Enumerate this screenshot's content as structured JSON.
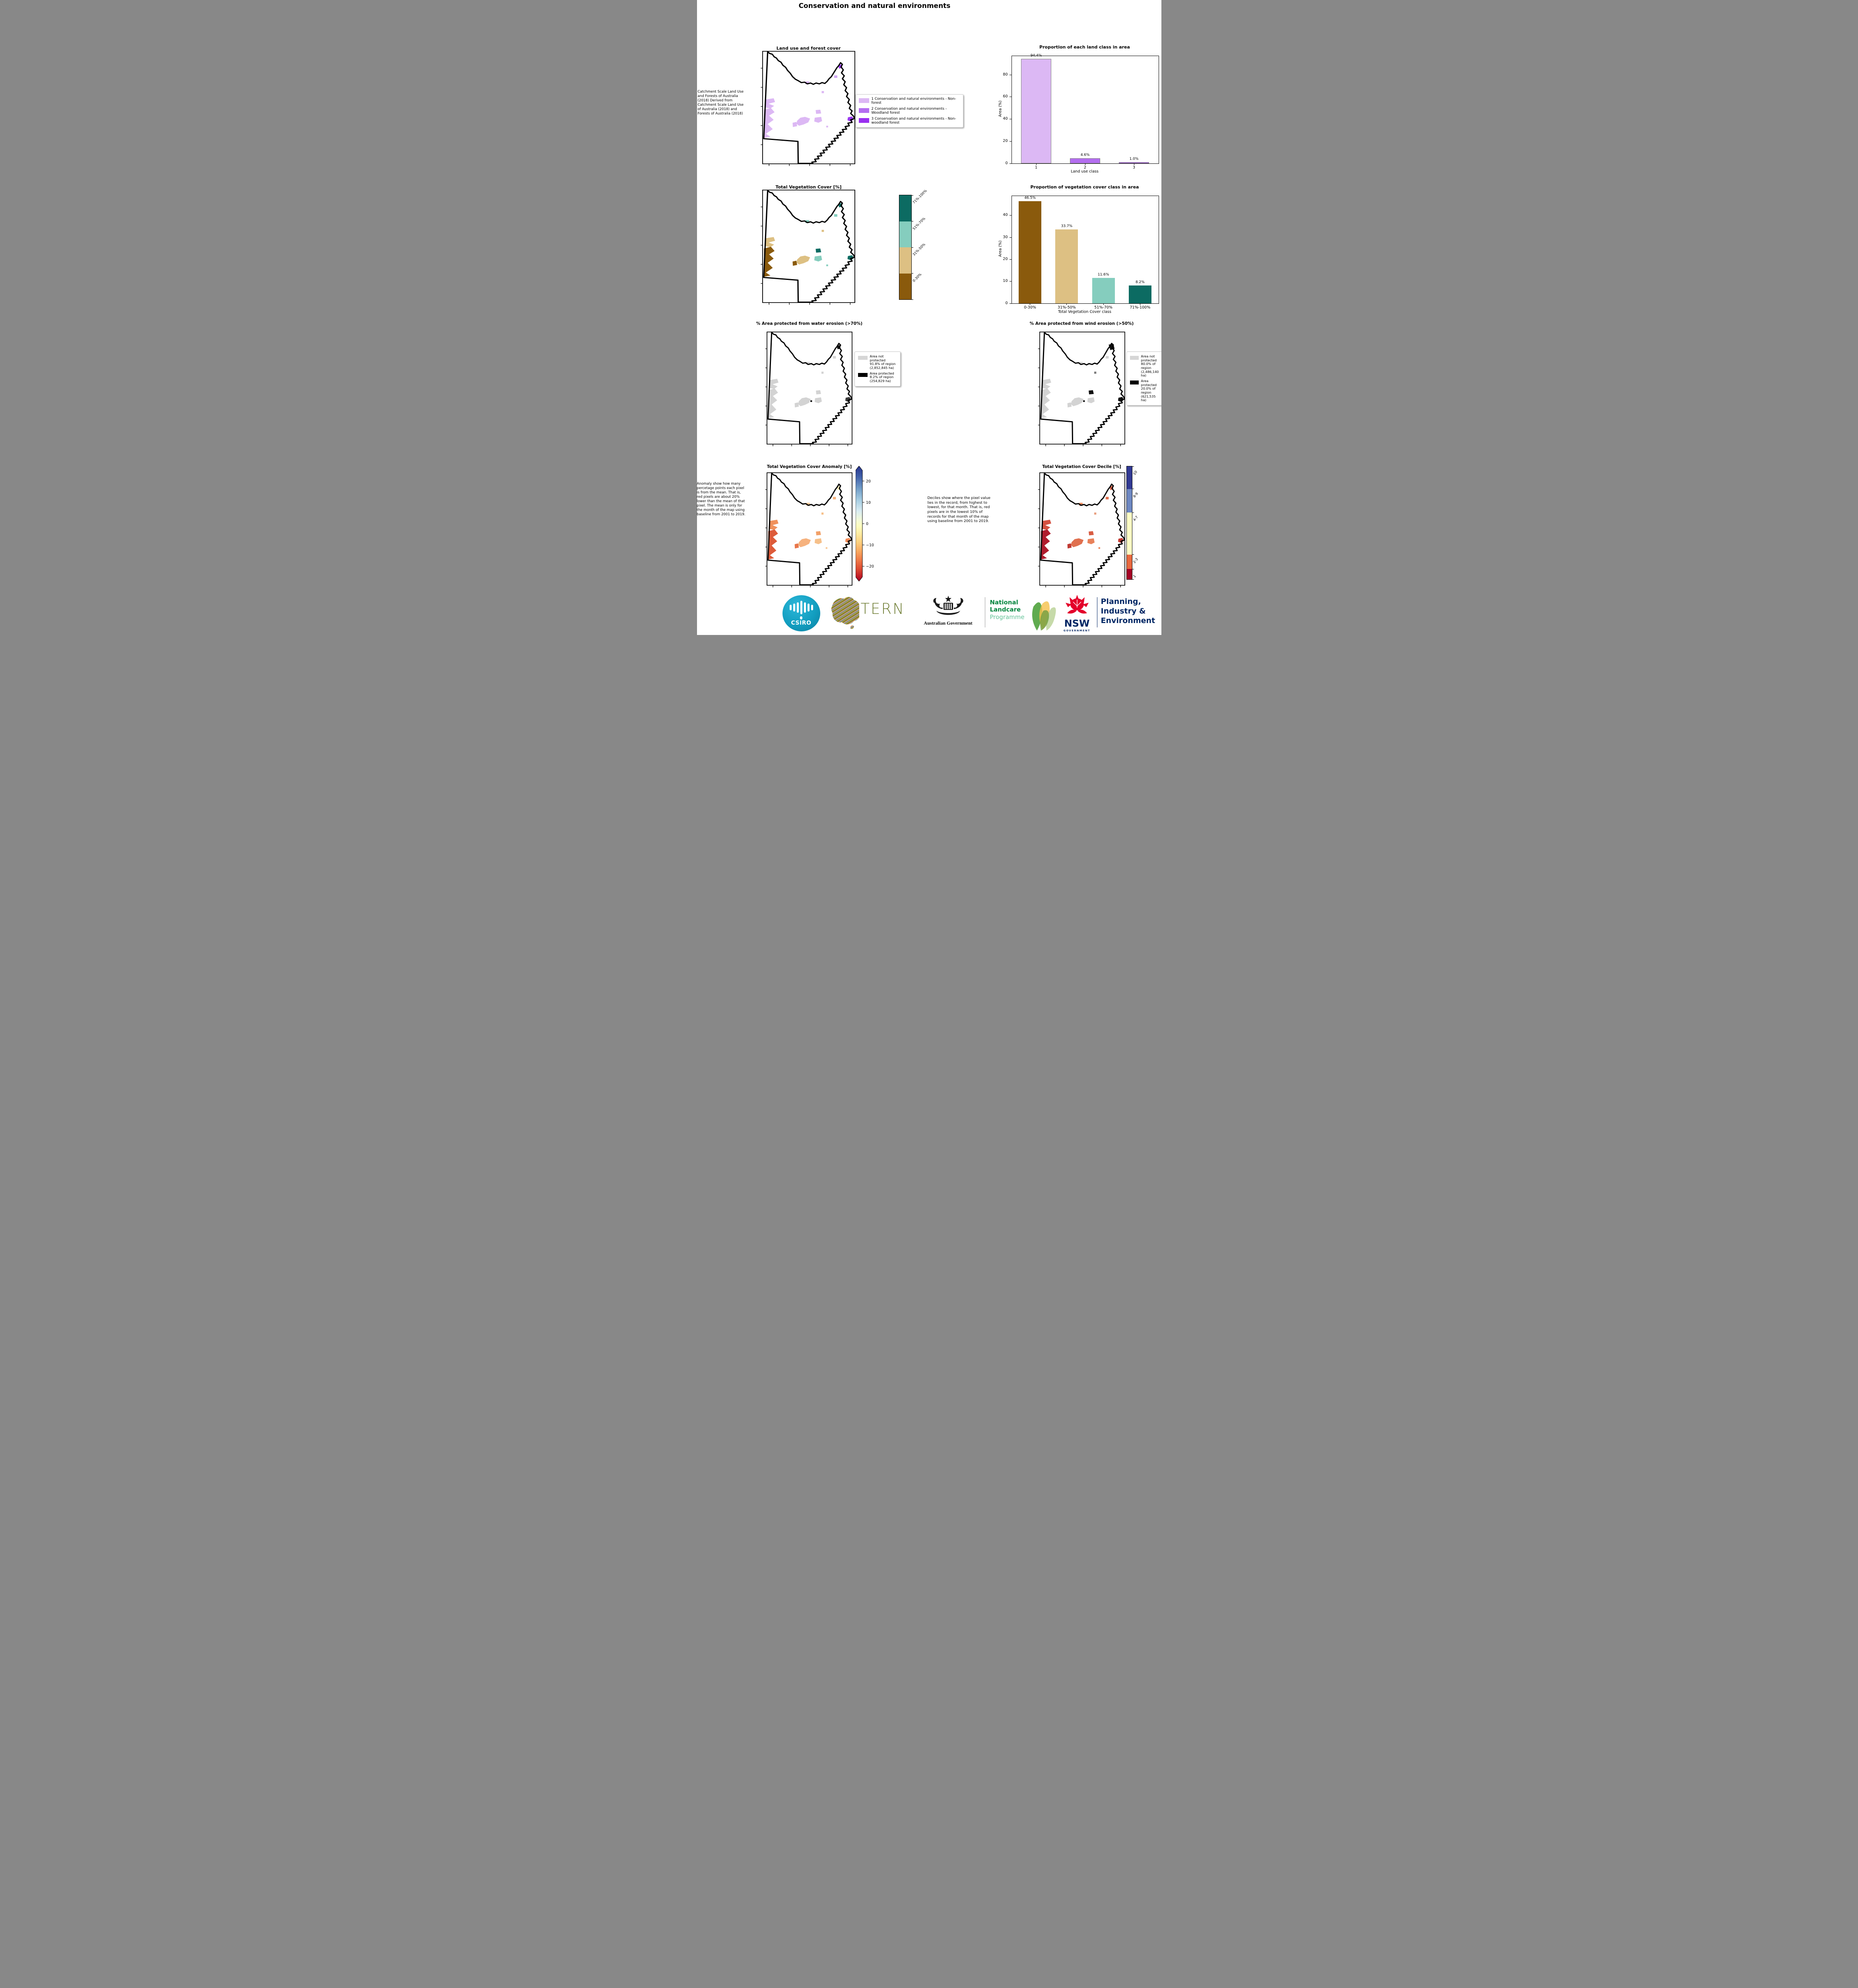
{
  "page": {
    "title": "Conservation and natural environments"
  },
  "row1": {
    "caption": " Catchment Scale Land Use and Forests of Australia (2018) Derived from Catchment Scale Land Use of Australia (2018) and Forests of Australia (2018)",
    "map_title": "Land use and forest cover",
    "legend": [
      {
        "color": "#dcb8f4",
        "label": "1 Conservation and natural environments - Non-forest"
      },
      {
        "color": "#b46ef0",
        "label": "2 Conservation and natural environments - Woodland forest"
      },
      {
        "color": "#9a2ff0",
        "label": "3 Conservation and natural environments - Non-woodland forest"
      }
    ]
  },
  "row2": {
    "map_title": "Total Vegetation Cover [%]",
    "colorbar": [
      {
        "label": "71%-100%",
        "color": "#0c6b62"
      },
      {
        "label": "51%-70%",
        "color": "#85cdbe"
      },
      {
        "label": "31%-50%",
        "color": "#ddc083"
      },
      {
        "label": "0-30%",
        "color": "#8a5a0c"
      }
    ]
  },
  "row3": {
    "left": {
      "title": "% Area protected from water erosion (>70%)",
      "legend": [
        {
          "color": "#d6d6d6",
          "label": "Area not protected 91.8% of region (2,852,845 ha)"
        },
        {
          "color": "#000000",
          "label": "Area protected 8.2% of region (254,829 ha)"
        }
      ]
    },
    "right": {
      "title": "% Area protected from wind erosion (>50%)",
      "legend": [
        {
          "color": "#d6d6d6",
          "label": "Area not protected 80.0% of region (2,486,140 ha)"
        },
        {
          "color": "#000000",
          "label": "Area protected 20.0% of region (621,535 ha)"
        }
      ]
    }
  },
  "row4": {
    "left": {
      "title": "Total Vegetation Cover Anomaly [%]",
      "caption": "Anomaly show how many percetage points each pixel is from the mean. That is, red pixels are about 20% lower than the mean of that pixel. The mean is only for the month of the map using baseline from 2001 to 2019.",
      "colorbar_ticks": [
        "20",
        "10",
        "0",
        "−10",
        "−20"
      ]
    },
    "right": {
      "title": "Total Vegetation Cover Decile [%]",
      "caption": "Deciles show where the pixel value lies in the record, from highest to lowest, for that month. That is, red pixels are in the lowest 10% of records for that month of the map using baseline from 2001 to 2019.",
      "colorbar": [
        {
          "label": "10",
          "color": "#323a94"
        },
        {
          "label": "8-9",
          "color": "#6e88c2"
        },
        {
          "label": "4-7",
          "color": "#fbfbc4"
        },
        {
          "label": "2-3",
          "color": "#e8693f"
        },
        {
          "label": "1",
          "color": "#a50126"
        }
      ]
    }
  },
  "chart_data": [
    {
      "type": "bar",
      "title": "Proportion of each land class in area",
      "categories": [
        "1",
        "2",
        "3"
      ],
      "values": [
        94.4,
        4.6,
        1.0
      ],
      "value_labels": [
        "94.4%",
        "4.6%",
        "1.0%"
      ],
      "colors": [
        "#dcb8f4",
        "#b46ef0",
        "#9a2ff0"
      ],
      "edgecolor": "#808080",
      "xlabel": "Land use class",
      "ylabel": "Area (%)",
      "yticks": [
        0,
        20,
        40,
        60,
        80
      ],
      "ylim": [
        0,
        97
      ],
      "legend_position": "none",
      "grid": false
    },
    {
      "type": "bar",
      "title": "Proportion of vegetation cover class in area",
      "categories": [
        "0-30%",
        "31%-50%",
        "51%-70%",
        "71%-100%"
      ],
      "values": [
        46.5,
        33.7,
        11.6,
        8.2
      ],
      "value_labels": [
        "46.5%",
        "33.7%",
        "11.6%",
        "8.2%"
      ],
      "colors": [
        "#8a5a0c",
        "#ddc083",
        "#85cdbe",
        "#0c6b62"
      ],
      "edgecolor": null,
      "xlabel": "Total Vegetation Cover class",
      "ylabel": "Area (%)",
      "yticks": [
        0,
        10,
        20,
        30,
        40
      ],
      "ylim": [
        0,
        48.8
      ],
      "legend_position": "none",
      "grid": false
    }
  ],
  "logos": {
    "csiro": {
      "label": "CSIRO",
      "teal": "#129ec0"
    },
    "tern": {
      "label": "TERN",
      "olive": "#6b7a2f"
    },
    "aus_gov": {
      "label": "Australian Government"
    },
    "landcare": {
      "line1": "National",
      "line2": "Landcare",
      "line3": "Programme",
      "green_dark": "#00853e",
      "green_light": "#63c297"
    },
    "nsw": {
      "label": "NSW",
      "sub": "GOVERNMENT",
      "navy": "#002664",
      "red": "#e4002b"
    },
    "planning": {
      "line1": "Planning,",
      "line2": "Industry &",
      "line3": "Environment"
    }
  }
}
